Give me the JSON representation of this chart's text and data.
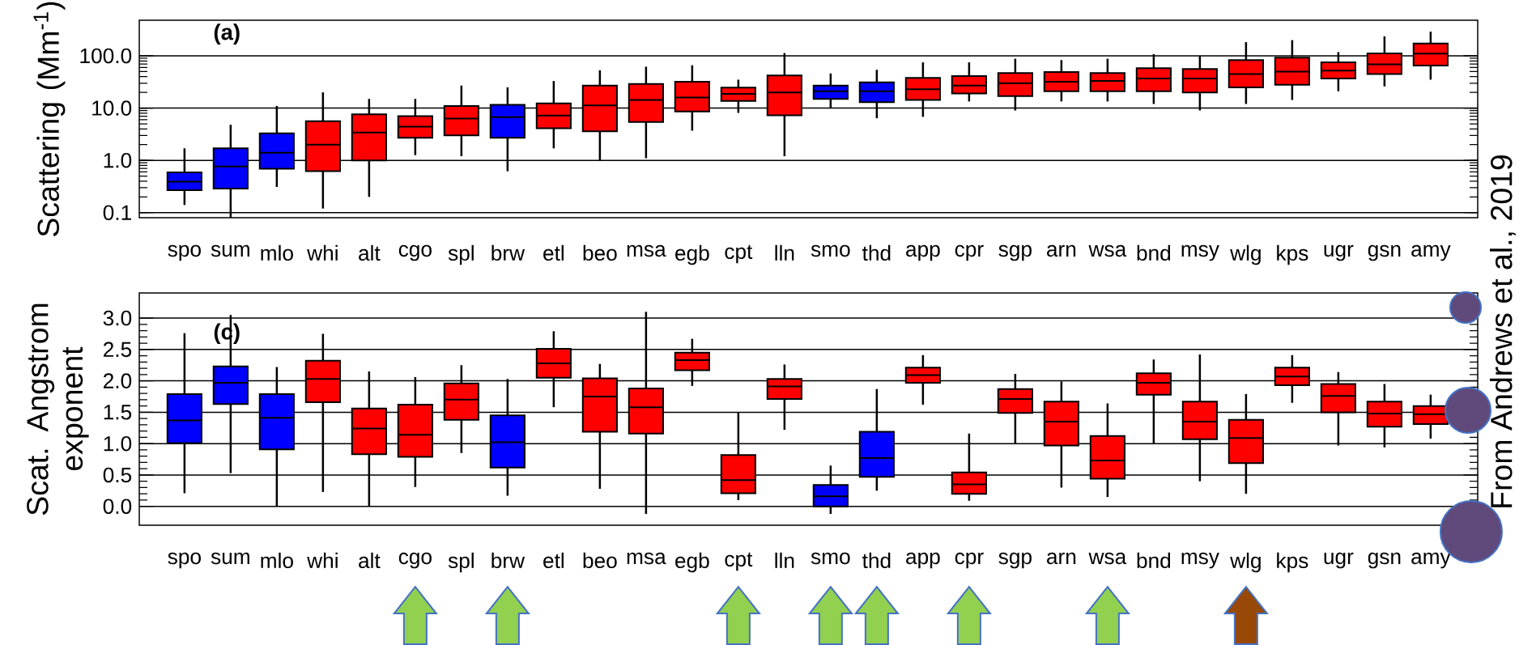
{
  "chart_data": [
    {
      "type": "box",
      "ylabel": "Scattering (Mm$^{-1}$)",
      "annotations": [
        "(a)",
        "From Andrews et al., 2019"
      ],
      "categories": [
        "spo",
        "sum",
        "mlo",
        "whi",
        "alt",
        "cgo",
        "spl",
        "brw",
        "etl",
        "beo",
        "msa",
        "egb",
        "cpt",
        "lln",
        "smo",
        "thd",
        "app",
        "cpr",
        "sgp",
        "arn",
        "wsa",
        "bnd",
        "msy",
        "wlg",
        "kps",
        "ugr",
        "gsn",
        "amy"
      ],
      "colors": [
        "#0000ff",
        "#0000ff",
        "#0000ff",
        "#ff0000",
        "#ff0000",
        "#ff0000",
        "#ff0000",
        "#0000ff",
        "#ff0000",
        "#ff0000",
        "#ff0000",
        "#ff0000",
        "#ff0000",
        "#ff0000",
        "#0000ff",
        "#0000ff",
        "#ff0000",
        "#ff0000",
        "#ff0000",
        "#ff0000",
        "#ff0000",
        "#ff0000",
        "#ff0000",
        "#ff0000",
        "#ff0000",
        "#ff0000",
        "#ff0000",
        "#ff0000"
      ],
      "boxes": [
        {
          "low": 0.14,
          "q1": 0.27,
          "median": 0.39,
          "q3": 0.59,
          "high": 1.7
        },
        {
          "low": 0.08,
          "q1": 0.29,
          "median": 0.76,
          "q3": 1.7,
          "high": 4.8
        },
        {
          "low": 0.31,
          "q1": 0.69,
          "median": 1.4,
          "q3": 3.3,
          "high": 11
        },
        {
          "low": 0.12,
          "q1": 0.62,
          "median": 2.0,
          "q3": 5.6,
          "high": 20
        },
        {
          "low": 0.2,
          "q1": 1.0,
          "median": 3.4,
          "q3": 7.6,
          "high": 15
        },
        {
          "low": 1.26,
          "q1": 2.7,
          "median": 4.4,
          "q3": 7.0,
          "high": 15
        },
        {
          "low": 1.2,
          "q1": 3.0,
          "median": 6.3,
          "q3": 11,
          "high": 27
        },
        {
          "low": 0.62,
          "q1": 2.7,
          "median": 6.7,
          "q3": 11.6,
          "high": 25
        },
        {
          "low": 1.7,
          "q1": 4.1,
          "median": 7.2,
          "q3": 12.3,
          "high": 33
        },
        {
          "low": 1.0,
          "q1": 3.6,
          "median": 11.3,
          "q3": 27,
          "high": 53
        },
        {
          "low": 1.1,
          "q1": 5.4,
          "median": 14.3,
          "q3": 29,
          "high": 62
        },
        {
          "low": 3.7,
          "q1": 8.6,
          "median": 16,
          "q3": 32,
          "high": 66
        },
        {
          "low": 8.1,
          "q1": 13.7,
          "median": 18.8,
          "q3": 24.6,
          "high": 35
        },
        {
          "low": 1.2,
          "q1": 7.3,
          "median": 20,
          "q3": 42,
          "high": 113
        },
        {
          "low": 10,
          "q1": 15,
          "median": 21,
          "q3": 27,
          "high": 46
        },
        {
          "low": 6.4,
          "q1": 13,
          "median": 21,
          "q3": 31,
          "high": 54
        },
        {
          "low": 6.8,
          "q1": 14.3,
          "median": 23,
          "q3": 38,
          "high": 75
        },
        {
          "low": 13.4,
          "q1": 19,
          "median": 27,
          "q3": 41,
          "high": 75
        },
        {
          "low": 9,
          "q1": 17,
          "median": 30,
          "q3": 47,
          "high": 88
        },
        {
          "low": 13.4,
          "q1": 21,
          "median": 32,
          "q3": 49,
          "high": 83
        },
        {
          "low": 13.4,
          "q1": 21,
          "median": 33,
          "q3": 47,
          "high": 88
        },
        {
          "low": 12,
          "q1": 21,
          "median": 37,
          "q3": 58,
          "high": 108
        },
        {
          "low": 9,
          "q1": 20,
          "median": 37,
          "q3": 56,
          "high": 100
        },
        {
          "low": 12,
          "q1": 25,
          "median": 45,
          "q3": 83,
          "high": 183
        },
        {
          "low": 14.3,
          "q1": 28,
          "median": 50,
          "q3": 92,
          "high": 200
        },
        {
          "low": 21,
          "q1": 37,
          "median": 52,
          "q3": 75,
          "high": 118
        },
        {
          "low": 26,
          "q1": 45,
          "median": 69,
          "q3": 111,
          "high": 236
        },
        {
          "low": 35,
          "q1": 65,
          "median": 110,
          "q3": 172,
          "high": 290
        }
      ],
      "log": true,
      "grid": "y",
      "ylim": [
        0.08,
        480
      ],
      "yticks": [
        0.1,
        {
          "value": 1,
          "label": "1.0"
        },
        {
          "value": 10,
          "label": "10.0"
        },
        {
          "value": 100,
          "label": "100.0"
        }
      ]
    },
    {
      "type": "box",
      "ylabel": "Scat. Angstrom exponent",
      "annotations": [
        "(c)"
      ],
      "categories": [
        "spo",
        "sum",
        "mlo",
        "whi",
        "alt",
        "cgo",
        "spl",
        "brw",
        "etl",
        "beo",
        "msa",
        "egb",
        "cpt",
        "lln",
        "smo",
        "thd",
        "app",
        "cpr",
        "sgp",
        "arn",
        "wsa",
        "bnd",
        "msy",
        "wlg",
        "kps",
        "ugr",
        "gsn",
        "amy"
      ],
      "colors": [
        "#0000ff",
        "#0000ff",
        "#0000ff",
        "#ff0000",
        "#ff0000",
        "#ff0000",
        "#ff0000",
        "#0000ff",
        "#ff0000",
        "#ff0000",
        "#ff0000",
        "#ff0000",
        "#ff0000",
        "#ff0000",
        "#0000ff",
        "#0000ff",
        "#ff0000",
        "#ff0000",
        "#ff0000",
        "#ff0000",
        "#ff0000",
        "#ff0000",
        "#ff0000",
        "#ff0000",
        "#ff0000",
        "#ff0000",
        "#ff0000",
        "#ff0000"
      ],
      "boxes": [
        {
          "low": 0.21,
          "q1": 1.01,
          "median": 1.37,
          "q3": 1.79,
          "high": 2.76
        },
        {
          "low": 0.53,
          "q1": 1.63,
          "median": 1.97,
          "q3": 2.23,
          "high": 3.05
        },
        {
          "low": 0.0,
          "q1": 0.91,
          "median": 1.41,
          "q3": 1.79,
          "high": 2.22
        },
        {
          "low": 0.23,
          "q1": 1.66,
          "median": 2.03,
          "q3": 2.32,
          "high": 2.75
        },
        {
          "low": 0.0,
          "q1": 0.83,
          "median": 1.24,
          "q3": 1.56,
          "high": 2.15
        },
        {
          "low": 0.31,
          "q1": 0.79,
          "median": 1.14,
          "q3": 1.62,
          "high": 2.06
        },
        {
          "low": 0.85,
          "q1": 1.38,
          "median": 1.7,
          "q3": 1.96,
          "high": 2.25
        },
        {
          "low": 0.17,
          "q1": 0.62,
          "median": 1.02,
          "q3": 1.45,
          "high": 2.03
        },
        {
          "low": 1.58,
          "q1": 2.05,
          "median": 2.28,
          "q3": 2.51,
          "high": 2.79
        },
        {
          "low": 0.28,
          "q1": 1.19,
          "median": 1.75,
          "q3": 2.04,
          "high": 2.27
        },
        {
          "low": -0.12,
          "q1": 1.16,
          "median": 1.58,
          "q3": 1.88,
          "high": 3.1
        },
        {
          "low": 1.92,
          "q1": 2.17,
          "median": 2.33,
          "q3": 2.45,
          "high": 2.67
        },
        {
          "low": 0.1,
          "q1": 0.21,
          "median": 0.42,
          "q3": 0.82,
          "high": 1.5
        },
        {
          "low": 1.22,
          "q1": 1.71,
          "median": 1.91,
          "q3": 2.03,
          "high": 2.26
        },
        {
          "low": -0.12,
          "q1": 0.0,
          "median": 0.16,
          "q3": 0.34,
          "high": 0.65
        },
        {
          "low": 0.25,
          "q1": 0.47,
          "median": 0.77,
          "q3": 1.19,
          "high": 1.87
        },
        {
          "low": 1.62,
          "q1": 1.97,
          "median": 2.09,
          "q3": 2.21,
          "high": 2.41
        },
        {
          "low": 0.09,
          "q1": 0.2,
          "median": 0.35,
          "q3": 0.54,
          "high": 1.16
        },
        {
          "low": 1.0,
          "q1": 1.49,
          "median": 1.71,
          "q3": 1.87,
          "high": 2.11
        },
        {
          "low": 0.3,
          "q1": 0.97,
          "median": 1.35,
          "q3": 1.67,
          "high": 1.99
        },
        {
          "low": 0.15,
          "q1": 0.44,
          "median": 0.73,
          "q3": 1.12,
          "high": 1.64
        },
        {
          "low": 1.0,
          "q1": 1.78,
          "median": 1.97,
          "q3": 2.12,
          "high": 2.34
        },
        {
          "low": 0.4,
          "q1": 1.07,
          "median": 1.35,
          "q3": 1.67,
          "high": 2.42
        },
        {
          "low": 0.2,
          "q1": 0.69,
          "median": 1.09,
          "q3": 1.38,
          "high": 1.79
        },
        {
          "low": 1.65,
          "q1": 1.93,
          "median": 2.07,
          "q3": 2.21,
          "high": 2.41
        },
        {
          "low": 0.97,
          "q1": 1.5,
          "median": 1.76,
          "q3": 1.95,
          "high": 2.14
        },
        {
          "low": 0.94,
          "q1": 1.27,
          "median": 1.48,
          "q3": 1.67,
          "high": 1.95
        },
        {
          "low": 1.08,
          "q1": 1.31,
          "median": 1.47,
          "q3": 1.6,
          "high": 1.78
        }
      ],
      "grid": "y",
      "ylim": [
        -0.3,
        3.4
      ],
      "yticks": [
        {
          "value": 0,
          "label": "0.0"
        },
        0.5,
        {
          "value": 1,
          "label": "1.0"
        },
        1.5,
        {
          "value": 2,
          "label": "2.0"
        },
        2.5,
        {
          "value": 3,
          "label": "3.0"
        }
      ]
    }
  ]
}
